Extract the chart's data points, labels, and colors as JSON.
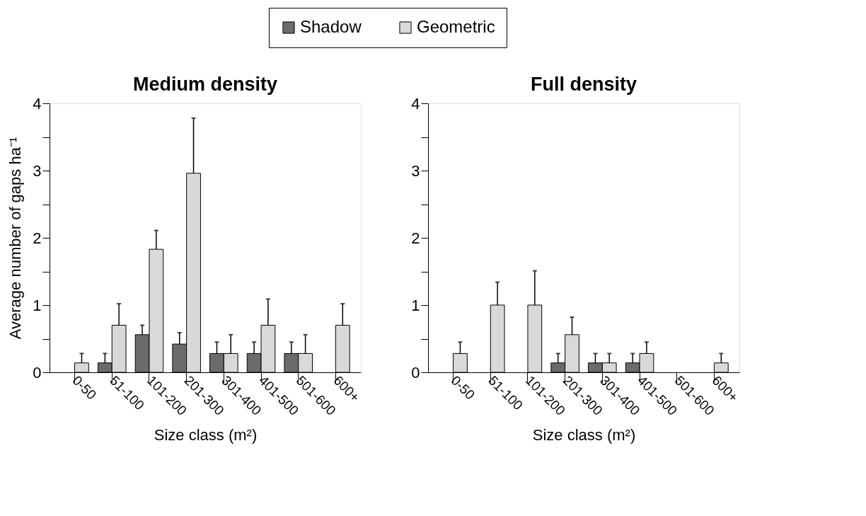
{
  "chart_data": [
    {
      "type": "bar",
      "title": "Medium density",
      "xlabel": "Size class (m²)",
      "ylabel": "Average number of gaps ha⁻¹",
      "categories": [
        "0-50",
        "51-100",
        "101-200",
        "201-300",
        "301-400",
        "401-500",
        "501-600",
        "600+"
      ],
      "series": [
        {
          "name": "Shadow",
          "color": "#6b6b6b",
          "values": [
            null,
            0.14,
            0.56,
            0.42,
            0.28,
            0.28,
            0.28,
            null
          ],
          "errors": [
            null,
            [
              0.14,
              0.28
            ],
            [
              0.56,
              0.7
            ],
            [
              0.42,
              0.59
            ],
            [
              0.28,
              0.45
            ],
            [
              0.28,
              0.45
            ],
            [
              0.28,
              0.45
            ],
            null
          ]
        },
        {
          "name": "Geometric",
          "color": "#d9d9d9",
          "values": [
            0.14,
            0.7,
            1.83,
            2.96,
            0.28,
            0.7,
            0.28,
            0.7
          ],
          "errors": [
            [
              0.14,
              0.28
            ],
            [
              0.7,
              1.02
            ],
            [
              1.83,
              2.11
            ],
            [
              2.96,
              3.78
            ],
            [
              0.28,
              0.56
            ],
            [
              0.7,
              1.09
            ],
            [
              0.28,
              0.56
            ],
            [
              0.7,
              1.02
            ]
          ]
        }
      ],
      "ylim": [
        0,
        4
      ],
      "yticks": [
        0,
        {
          "value": 0.5,
          "label": null
        },
        1,
        {
          "value": 1.5,
          "label": null
        },
        2,
        {
          "value": 2.5,
          "label": null
        },
        3,
        {
          "value": 3.5,
          "label": null
        },
        4
      ],
      "grid": false,
      "legend": "top"
    },
    {
      "type": "bar",
      "title": "Full density",
      "xlabel": "Size class (m²)",
      "categories": [
        "0-50",
        "51-100",
        "101-200",
        "201-300",
        "301-400",
        "401-500",
        "501-600",
        "600+"
      ],
      "series": [
        {
          "color": "#6b6b6b",
          "values": [
            null,
            null,
            null,
            0.14,
            0.14,
            0.14,
            null,
            null
          ],
          "errors": [
            null,
            null,
            null,
            [
              0.14,
              0.28
            ],
            [
              0.14,
              0.28
            ],
            [
              0.14,
              0.28
            ],
            null,
            null
          ]
        },
        {
          "color": "#d9d9d9",
          "values": [
            0.28,
            1.0,
            1.0,
            0.56,
            0.14,
            0.28,
            null,
            0.14
          ],
          "errors": [
            [
              0.28,
              0.45
            ],
            [
              1.0,
              1.34
            ],
            [
              1.0,
              1.51
            ],
            [
              0.56,
              0.82
            ],
            [
              0.14,
              0.28
            ],
            [
              0.28,
              0.45
            ],
            null,
            [
              0.14,
              0.28
            ]
          ]
        }
      ],
      "ylim": [
        0,
        4
      ],
      "yticks": [
        0,
        {
          "value": 0.5,
          "label": null
        },
        1,
        {
          "value": 1.5,
          "label": null
        },
        2,
        {
          "value": 2.5,
          "label": null
        },
        3,
        {
          "value": 3.5,
          "label": null
        },
        4
      ],
      "grid": false
    }
  ]
}
